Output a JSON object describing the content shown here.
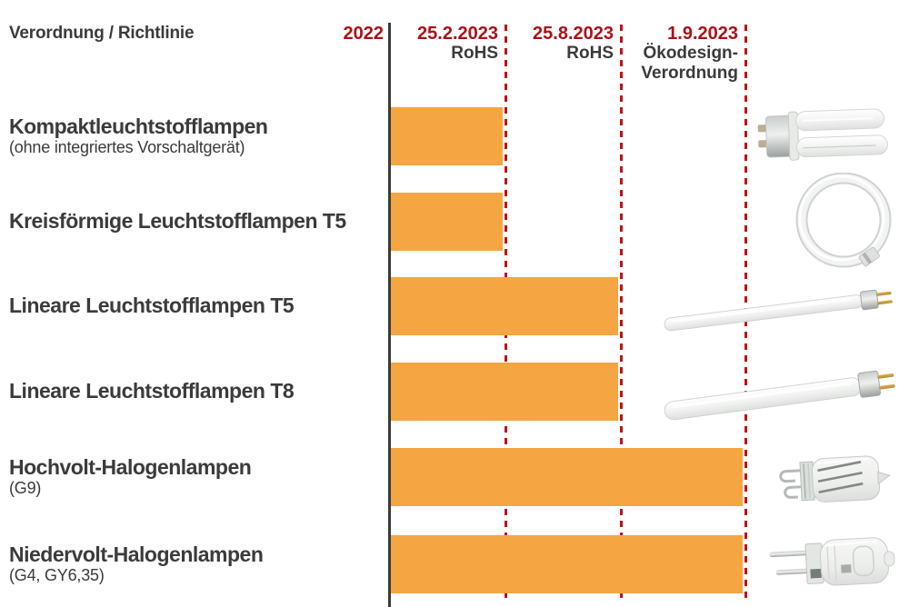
{
  "header": {
    "title": "Verordnung / Richtlinie",
    "start_year": "2022",
    "milestones": [
      {
        "date": "25.2.2023",
        "label_lines": [
          "RoHS"
        ]
      },
      {
        "date": "25.8.2023",
        "label_lines": [
          "RoHS"
        ]
      },
      {
        "date": "1.9.2023",
        "label_lines": [
          "Ökodesign-",
          "Verordnung"
        ]
      }
    ]
  },
  "rows": [
    {
      "name": "Kompaktleuchtstofflampen",
      "note": "(ohne integriertes Vorschaltgerät)",
      "end": "25.2.2023",
      "lamp": "compact-fluorescent-lamp"
    },
    {
      "name": "Kreisförmige Leuchtstofflampen T5",
      "note": "",
      "end": "25.2.2023",
      "lamp": "circular-fluorescent-lamp"
    },
    {
      "name": "Lineare Leuchtstofflampen T5",
      "note": "",
      "end": "25.8.2023",
      "lamp": "linear-tube-t5"
    },
    {
      "name": "Lineare Leuchtstofflampen T8",
      "note": "",
      "end": "25.8.2023",
      "lamp": "linear-tube-t8"
    },
    {
      "name": "Hochvolt-Halogenlampen",
      "note": "(G9)",
      "end": "1.9.2023",
      "lamp": "g9-halogen-lamp"
    },
    {
      "name": "Niedervolt-Halogenlampen",
      "note": "(G4, GY6,35)",
      "end": "1.9.2023",
      "lamp": "g4-halogen-lamp"
    }
  ],
  "colors": {
    "bar": "#F5A541",
    "date_red": "#AC1016",
    "dash_red": "#C01214",
    "text_dark": "#3B3B3A"
  },
  "chart_data": {
    "type": "bar",
    "subtype": "horizontal-phaseout-timeline",
    "title": "Verordnung / Richtlinie",
    "timeline_start": "2022",
    "milestones": [
      {
        "date": "25.2.2023",
        "regulation": "RoHS"
      },
      {
        "date": "25.8.2023",
        "regulation": "RoHS"
      },
      {
        "date": "1.9.2023",
        "regulation": "Ökodesign-Verordnung"
      }
    ],
    "categories": [
      "Kompaktleuchtstofflampen (ohne integriertes Vorschaltgerät)",
      "Kreisförmige Leuchtstofflampen T5",
      "Lineare Leuchtstofflampen T5",
      "Lineare Leuchtstofflampen T8",
      "Hochvolt-Halogenlampen (G9)",
      "Niedervolt-Halogenlampen (G4, GY6,35)"
    ],
    "values": [
      "25.2.2023",
      "25.2.2023",
      "25.8.2023",
      "25.8.2023",
      "1.9.2023",
      "1.9.2023"
    ],
    "bar_color": "#F5A541",
    "grid": false,
    "legend": false
  }
}
